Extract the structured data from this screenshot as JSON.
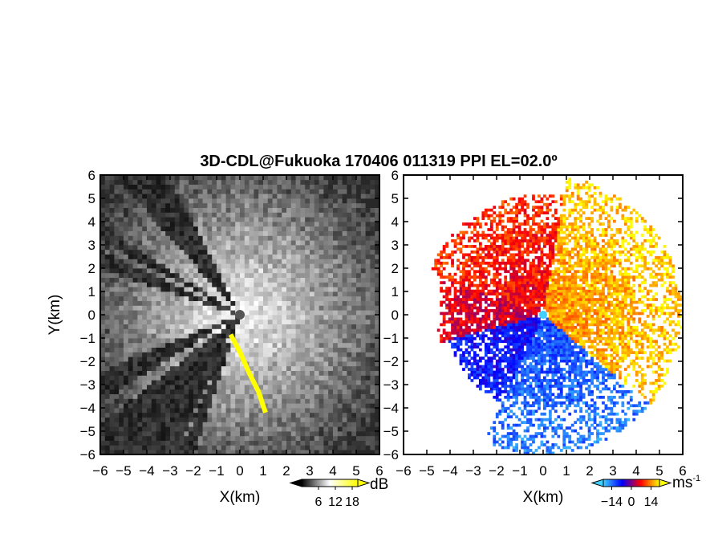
{
  "chart_data": [
    {
      "type": "heatmap",
      "panel": "left",
      "title": "3D-CDL@Fukuoka 170406 011319 PPI EL=02.0º",
      "variable": "signal intensity",
      "xlabel": "X(km)",
      "ylabel": "Y(km)",
      "xlim": [
        -6,
        6
      ],
      "ylim": [
        -6,
        6
      ],
      "x_ticks": [
        -6,
        -5,
        -4,
        -3,
        -2,
        -1,
        0,
        1,
        2,
        3,
        4,
        5,
        6
      ],
      "y_ticks": [
        -6,
        -5,
        -4,
        -3,
        -2,
        -1,
        0,
        1,
        2,
        3,
        4,
        5,
        6
      ],
      "colorbar": {
        "unit": "dB",
        "ticks": [
          6,
          12,
          18
        ],
        "range": [
          0,
          20
        ],
        "colors": [
          "#000000",
          "#ffffff",
          "#ffff00"
        ]
      },
      "blocked_sectors_deg": [
        [
          117,
          132
        ],
        [
          147,
          152
        ],
        [
          155,
          162
        ],
        [
          202,
          212
        ],
        [
          218,
          245
        ],
        [
          246,
          252
        ]
      ],
      "highlight": {
        "color": "#ffff00",
        "points_xy_km": [
          [
            -0.4,
            -0.85
          ],
          [
            0.0,
            -1.6
          ],
          [
            0.4,
            -2.5
          ],
          [
            0.8,
            -3.3
          ],
          [
            1.1,
            -4.2
          ]
        ]
      }
    },
    {
      "type": "heatmap",
      "panel": "right",
      "variable": "radial velocity",
      "xlabel": "X(km)",
      "xlim": [
        -6,
        6
      ],
      "ylim": [
        -6,
        6
      ],
      "x_ticks": [
        -6,
        -5,
        -4,
        -3,
        -2,
        -1,
        0,
        1,
        2,
        3,
        4,
        5,
        6
      ],
      "y_ticks": [
        -6,
        -5,
        -4,
        -3,
        -2,
        -1,
        0,
        1,
        2,
        3,
        4,
        5,
        6
      ],
      "colorbar": {
        "unit": "ms-1",
        "unit_base": "ms",
        "unit_exp": "-1",
        "ticks": [
          -14,
          0,
          14
        ],
        "tick_labels": [
          "−14",
          "0",
          "14"
        ],
        "range": [
          -20,
          20
        ],
        "colors": [
          "#40d0ff",
          "#0000ff",
          "#ff0000",
          "#ffff00"
        ]
      },
      "velocity_sectors": [
        {
          "from_deg": -40,
          "to_deg": 80,
          "velocity_ms": 14,
          "max_range_km": 6.0
        },
        {
          "from_deg": 80,
          "to_deg": 160,
          "velocity_ms": 6,
          "max_range_km": 5.2
        },
        {
          "from_deg": 160,
          "to_deg": 195,
          "velocity_ms": 3,
          "max_range_km": 4.6
        },
        {
          "from_deg": 195,
          "to_deg": 245,
          "velocity_ms": -6,
          "max_range_km": 4.2
        },
        {
          "from_deg": 245,
          "to_deg": 350,
          "velocity_ms": -11,
          "max_range_km": 6.0
        }
      ]
    }
  ]
}
